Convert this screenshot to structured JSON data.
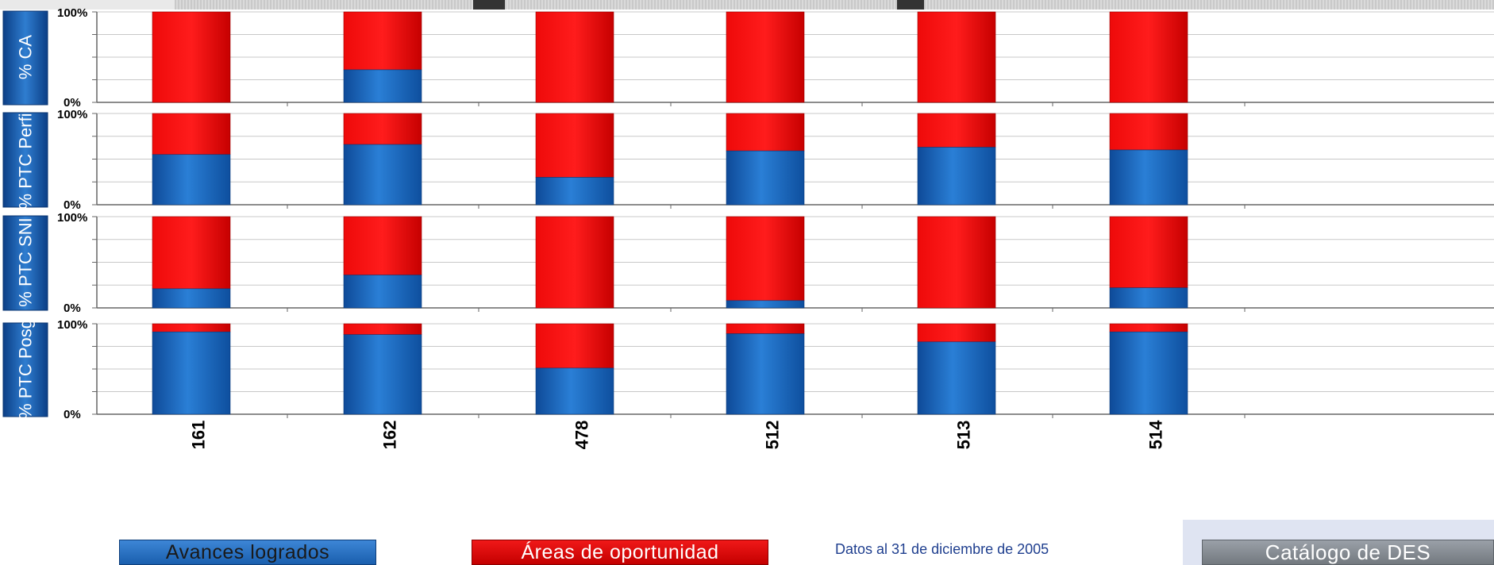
{
  "chart_data": {
    "type": "bar",
    "stacked": true,
    "categories": [
      "161",
      "162",
      "478",
      "512",
      "513",
      "514"
    ],
    "colors": {
      "avances": "#1a5fae",
      "areas": "#d40000"
    },
    "panels": [
      {
        "ylabel": "% CA",
        "tick_top": "100%",
        "tick_bottom": "0%",
        "values": [
          0,
          36,
          0,
          0,
          0,
          0
        ]
      },
      {
        "ylabel": "% PTC Perfil",
        "tick_top": "100%",
        "tick_bottom": "0%",
        "values": [
          55,
          66,
          30,
          59,
          63,
          60
        ]
      },
      {
        "ylabel": "% PTC SNI",
        "tick_top": "100%",
        "tick_bottom": "0%",
        "values": [
          21,
          36,
          0,
          8,
          0,
          22
        ]
      },
      {
        "ylabel": "% PTC Posg",
        "tick_top": "100%",
        "tick_bottom": "0%",
        "values": [
          91,
          88,
          51,
          89,
          80,
          91
        ]
      }
    ],
    "series": [
      {
        "name": "Avances logrados"
      },
      {
        "name": "Áreas de oportunidad"
      }
    ],
    "ylim": [
      0,
      100
    ]
  },
  "footer": {
    "legend_avances": "Avances logrados",
    "legend_areas": "Áreas de oportunidad",
    "data_note": "Datos al 31 de diciembre de 2005",
    "catalog_button": "Catálogo de DES"
  }
}
